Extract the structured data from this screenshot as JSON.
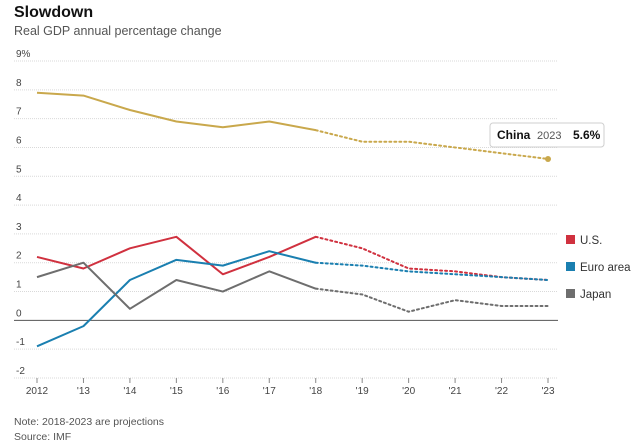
{
  "chart_data": {
    "type": "line",
    "title": "Slowdown",
    "subtitle": "Real GDP annual percentage change",
    "x": [
      2012,
      2013,
      2014,
      2015,
      2016,
      2017,
      2018,
      2019,
      2020,
      2021,
      2022,
      2023
    ],
    "x_tick_labels": [
      "2012",
      "'13",
      "'14",
      "'15",
      "'16",
      "'17",
      "'18",
      "'19",
      "'20",
      "'21",
      "'22",
      "'23"
    ],
    "y_tick_labels": [
      "-2",
      "-1",
      "0",
      "1",
      "2",
      "3",
      "4",
      "5",
      "6",
      "7",
      "8",
      "9%"
    ],
    "ylim": [
      -2,
      9
    ],
    "projection_start": 2018,
    "grid": "horizontal",
    "series": [
      {
        "name": "China",
        "color": "#c9a84c",
        "values": [
          7.9,
          7.8,
          7.3,
          6.9,
          6.7,
          6.9,
          6.6,
          6.2,
          6.2,
          6.0,
          5.8,
          5.6
        ]
      },
      {
        "name": "U.S.",
        "color": "#d0313f",
        "values": [
          2.2,
          1.8,
          2.5,
          2.9,
          1.6,
          2.2,
          2.9,
          2.5,
          1.8,
          1.7,
          1.5,
          1.4
        ]
      },
      {
        "name": "Euro area",
        "color": "#1a7fb0",
        "values": [
          -0.9,
          -0.2,
          1.4,
          2.1,
          1.9,
          2.4,
          2.0,
          1.9,
          1.7,
          1.6,
          1.5,
          1.4
        ]
      },
      {
        "name": "Japan",
        "color": "#6e6e6e",
        "values": [
          1.5,
          2.0,
          0.4,
          1.4,
          1.0,
          1.7,
          1.1,
          0.9,
          0.3,
          0.7,
          0.5,
          0.5
        ]
      }
    ],
    "legend": [
      "U.S.",
      "Euro area",
      "Japan"
    ],
    "legend_position": "right",
    "tooltip": {
      "series": "China",
      "year": "2023",
      "value": "5.6%"
    }
  },
  "note": "Note: 2018-2023 are projections",
  "source": "Source: IMF"
}
